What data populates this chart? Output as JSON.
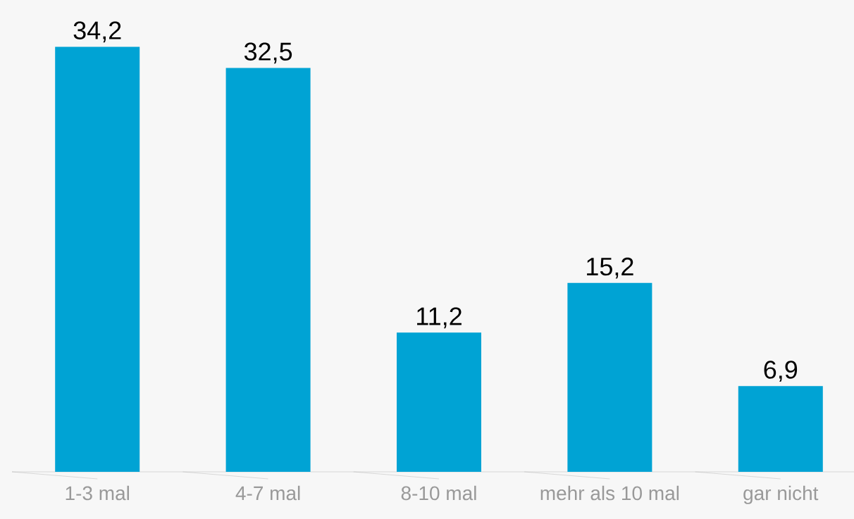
{
  "chart_data": {
    "type": "bar",
    "categories": [
      "1-3 mal",
      "4-7 mal",
      "8-10 mal",
      "mehr als 10 mal",
      "gar nicht"
    ],
    "values": [
      34.2,
      32.5,
      11.2,
      15.2,
      6.9
    ],
    "value_labels": [
      "34,2",
      "32,5",
      "11,2",
      "15,2",
      "6,9"
    ],
    "color": "#00a3d4"
  }
}
